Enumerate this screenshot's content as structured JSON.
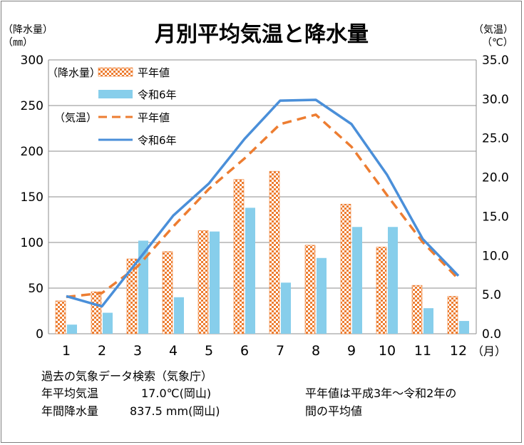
{
  "chart_data": {
    "type": "bar+line",
    "title": "月別平均気温と降水量",
    "left_axis": {
      "label_line1": "（降水量）",
      "label_line2": "（㎜）",
      "min": 0,
      "max": 300,
      "ticks": [
        "0",
        "50",
        "100",
        "150",
        "200",
        "250",
        "300"
      ]
    },
    "right_axis": {
      "label_line1": "（気温）",
      "label_line2": "（℃）",
      "min": 0,
      "max": 35,
      "ticks": [
        "0.0",
        "5.0",
        "10.0",
        "15.0",
        "20.0",
        "25.0",
        "30.0",
        "35.0"
      ]
    },
    "categories": [
      "1",
      "2",
      "3",
      "4",
      "5",
      "6",
      "7",
      "8",
      "9",
      "10",
      "11",
      "12"
    ],
    "x_unit": "（月）",
    "precip_group_label": "（降水量）",
    "temp_group_label": "（気温）",
    "series": [
      {
        "name": "平年値",
        "group": "precip",
        "kind": "bar",
        "color": "#ed7d31",
        "values": [
          36,
          46,
          82,
          90,
          113,
          169,
          178,
          97,
          142,
          95,
          53,
          41
        ]
      },
      {
        "name": "令和6年",
        "group": "precip",
        "kind": "bar",
        "color": "#87ceeb",
        "values": [
          10,
          23,
          102,
          40,
          112,
          138,
          56,
          83,
          117,
          117,
          28,
          14
        ]
      },
      {
        "name": "平年値",
        "group": "temp",
        "kind": "line",
        "color": "#ed7d31",
        "dashed": true,
        "values": [
          4.7,
          5.2,
          8.6,
          13.7,
          18.5,
          22.4,
          26.8,
          28.0,
          23.9,
          17.7,
          11.7,
          7.0
        ]
      },
      {
        "name": "令和6年",
        "group": "temp",
        "kind": "line",
        "color": "#4a8fd9",
        "dashed": false,
        "values": [
          4.8,
          3.5,
          9.3,
          15.1,
          19.2,
          24.9,
          29.8,
          29.9,
          26.8,
          20.3,
          12.1,
          7.4
        ]
      }
    ],
    "grid": true
  },
  "notes": {
    "source": "過去の気象データ検索（気象庁）",
    "annual_temp_label": "年平均気温",
    "annual_temp_value": "17.0℃(岡山)",
    "annual_precip_label": "年間降水量",
    "annual_precip_value": "837.5 mm(岡山)",
    "normal_note_line1": "平年値は平成3年～令和2年の",
    "normal_note_line2": "間の平均値"
  }
}
